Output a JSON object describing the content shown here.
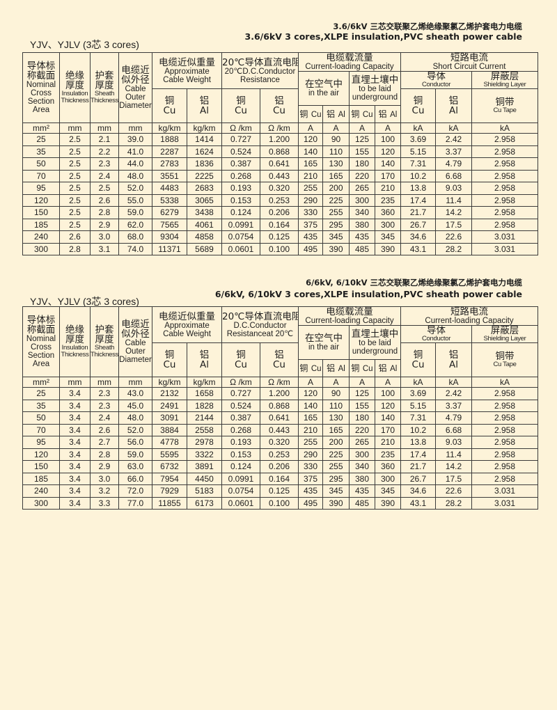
{
  "sections": [
    {
      "title_cn": "3.6/6kV 三芯交联聚乙烯绝缘聚氯乙烯护套电力电缆",
      "title_en": "3.6/6kV 3 cores,XLPE insulation,PVC sheath power cable",
      "label": "YJV、YJLV (3芯  3 cores)",
      "headers": {
        "area": {
          "cn": [
            "导体标",
            "称截面"
          ],
          "en": [
            "Nominal",
            "Cross",
            "Section",
            "Area"
          ]
        },
        "insulation": {
          "cn": [
            "绝缘",
            "厚度"
          ],
          "en": [
            "Insulation",
            "Thickness"
          ]
        },
        "sheath": {
          "cn": [
            "护套",
            "厚度"
          ],
          "en": [
            "Sheath",
            "Thickness"
          ]
        },
        "diameter": {
          "cn": [
            "电缆近",
            "似外径"
          ],
          "en": [
            "Cable",
            "Outer",
            "Diameter"
          ]
        },
        "weight": {
          "cn": "电缆近似重量",
          "en": [
            "Approximate",
            "Cable Weight"
          ]
        },
        "resistance": {
          "cn": "20℃导体直流电阻",
          "en": [
            "20℃D.C.Conductor",
            "Resistance"
          ]
        },
        "weight_cu": [
          "铜",
          "Cu"
        ],
        "weight_al": [
          "铝",
          "Al"
        ],
        "res_cu": [
          "铜",
          "Cu"
        ],
        "res_al": [
          "铝",
          "Cu"
        ],
        "current": {
          "cn": "电缆载流量",
          "en": "Current-loading Capacity"
        },
        "air": {
          "cn": "在空气中",
          "en": [
            "in the air"
          ]
        },
        "ground": {
          "cn": "直埋土壤中",
          "en": [
            "to be laid",
            "underground"
          ]
        },
        "current_cols": [
          [
            "铜",
            "Cu"
          ],
          [
            "铝",
            "Al"
          ],
          [
            "铜",
            "Cu"
          ],
          [
            "铝",
            "Al"
          ]
        ],
        "short": {
          "cn": "短路电流",
          "en": "Short  Circuit Current"
        },
        "conductor": {
          "cn": "导体",
          "en": "Conductor"
        },
        "shielding": {
          "cn": "屏蔽层",
          "en": "Shielding Layer"
        },
        "sc_cu": [
          "铜",
          "Cu"
        ],
        "sc_al": [
          "铝",
          "Al"
        ],
        "tape": [
          "铜带",
          "Cu Tape"
        ]
      },
      "units": [
        "mm²",
        "mm",
        "mm",
        "mm",
        "kg/km",
        "kg/km",
        "Ω /km",
        "Ω /km",
        "A",
        "A",
        "A",
        "A",
        "kA",
        "kA",
        "kA"
      ],
      "rows": [
        [
          "25",
          "2.5",
          "2.1",
          "39.0",
          "1888",
          "1414",
          "0.727",
          "1.200",
          "120",
          "90",
          "125",
          "100",
          "3.69",
          "2.42",
          "2.958"
        ],
        [
          "35",
          "2.5",
          "2.2",
          "41.0",
          "2287",
          "1624",
          "0.524",
          "0.868",
          "140",
          "110",
          "155",
          "120",
          "5.15",
          "3.37",
          "2.958"
        ],
        [
          "50",
          "2.5",
          "2.3",
          "44.0",
          "2783",
          "1836",
          "0.387",
          "0.641",
          "165",
          "130",
          "180",
          "140",
          "7.31",
          "4.79",
          "2.958"
        ],
        [
          "70",
          "2.5",
          "2.4",
          "48.0",
          "3551",
          "2225",
          "0.268",
          "0.443",
          "210",
          "165",
          "220",
          "170",
          "10.2",
          "6.68",
          "2.958"
        ],
        [
          "95",
          "2.5",
          "2.5",
          "52.0",
          "4483",
          "2683",
          "0.193",
          "0.320",
          "255",
          "200",
          "265",
          "210",
          "13.8",
          "9.03",
          "2.958"
        ],
        [
          "120",
          "2.5",
          "2.6",
          "55.0",
          "5338",
          "3065",
          "0.153",
          "0.253",
          "290",
          "225",
          "300",
          "235",
          "17.4",
          "11.4",
          "2.958"
        ],
        [
          "150",
          "2.5",
          "2.8",
          "59.0",
          "6279",
          "3438",
          "0.124",
          "0.206",
          "330",
          "255",
          "340",
          "360",
          "21.7",
          "14.2",
          "2.958"
        ],
        [
          "185",
          "2.5",
          "2.9",
          "62.0",
          "7565",
          "4061",
          "0.0991",
          "0.164",
          "375",
          "295",
          "380",
          "300",
          "26.7",
          "17.5",
          "2.958"
        ],
        [
          "240",
          "2.6",
          "3.0",
          "68.0",
          "9304",
          "4858",
          "0.0754",
          "0.125",
          "435",
          "345",
          "435",
          "345",
          "34.6",
          "22.6",
          "3.031"
        ],
        [
          "300",
          "2.8",
          "3.1",
          "74.0",
          "11371",
          "5689",
          "0.0601",
          "0.100",
          "495",
          "390",
          "485",
          "390",
          "43.1",
          "28.2",
          "3.031"
        ]
      ]
    },
    {
      "title_cn": "6/6kV, 6/10kV 三芯交联聚乙烯绝缘聚氯乙烯护套电力电缆",
      "title_en": "6/6kV, 6/10kV 3 cores,XLPE insulation,PVC sheath power cable",
      "label": "YJV、YJLV (3芯  3 cores)",
      "headers": {
        "area": {
          "cn": [
            "导体标",
            "称截面"
          ],
          "en": [
            "Nominal",
            "Cross",
            "Section",
            "Area"
          ]
        },
        "insulation": {
          "cn": [
            "绝缘",
            "厚度"
          ],
          "en": [
            "Insulation",
            "Thickness"
          ]
        },
        "sheath": {
          "cn": [
            "护套",
            "厚度"
          ],
          "en": [
            "Sheath",
            "Thickness"
          ]
        },
        "diameter": {
          "cn": [
            "电缆近",
            "似外径"
          ],
          "en": [
            "Cable",
            "Outer",
            "Diameter"
          ]
        },
        "weight": {
          "cn": "电缆近似重量",
          "en": [
            "Approximate",
            "Cable Weight"
          ]
        },
        "resistance": {
          "cn": "20℃导体直流电阻",
          "en": [
            "D.C.Conductor",
            "Resistanceat 20℃"
          ]
        },
        "weight_cu": [
          "铜",
          "Cu"
        ],
        "weight_al": [
          "铝",
          "Al"
        ],
        "res_cu": [
          "铜",
          "Cu"
        ],
        "res_al": [
          "铝",
          "Cu"
        ],
        "current": {
          "cn": "电缆载流量",
          "en": "Current-loading Capacity"
        },
        "air": {
          "cn": "在空气中",
          "en": [
            "in the air"
          ]
        },
        "ground": {
          "cn": "直埋土壤中",
          "en": [
            "to be laid",
            "underground"
          ]
        },
        "current_cols": [
          [
            "铜",
            "Cu"
          ],
          [
            "铝",
            "Al"
          ],
          [
            "铜",
            "Cu"
          ],
          [
            "铝",
            "Al"
          ]
        ],
        "short": {
          "cn": "短路电流",
          "en": "Current-loading Capacity"
        },
        "conductor": {
          "cn": "导体",
          "en": "Conductor"
        },
        "shielding": {
          "cn": "屏蔽层",
          "en": "Shielding Layer"
        },
        "sc_cu": [
          "铜",
          "Cu"
        ],
        "sc_al": [
          "铝",
          "Al"
        ],
        "tape": [
          "铜带",
          "Cu Tape"
        ]
      },
      "units": [
        "mm²",
        "mm",
        "mm",
        "mm",
        "kg/km",
        "kg/km",
        "Ω /km",
        "Ω /km",
        "A",
        "A",
        "A",
        "A",
        "kA",
        "kA",
        "kA"
      ],
      "rows": [
        [
          "25",
          "3.4",
          "2.3",
          "43.0",
          "2132",
          "1658",
          "0.727",
          "1.200",
          "120",
          "90",
          "125",
          "100",
          "3.69",
          "2.42",
          "2.958"
        ],
        [
          "35",
          "3.4",
          "2.3",
          "45.0",
          "2491",
          "1828",
          "0.524",
          "0.868",
          "140",
          "110",
          "155",
          "120",
          "5.15",
          "3.37",
          "2.958"
        ],
        [
          "50",
          "3.4",
          "2.4",
          "48.0",
          "3091",
          "2144",
          "0.387",
          "0.641",
          "165",
          "130",
          "180",
          "140",
          "7.31",
          "4.79",
          "2.958"
        ],
        [
          "70",
          "3.4",
          "2.6",
          "52.0",
          "3884",
          "2558",
          "0.268",
          "0.443",
          "210",
          "165",
          "220",
          "170",
          "10.2",
          "6.68",
          "2.958"
        ],
        [
          "95",
          "3.4",
          "2.7",
          "56.0",
          "4778",
          "2978",
          "0.193",
          "0.320",
          "255",
          "200",
          "265",
          "210",
          "13.8",
          "9.03",
          "2.958"
        ],
        [
          "120",
          "3.4",
          "2.8",
          "59.0",
          "5595",
          "3322",
          "0.153",
          "0.253",
          "290",
          "225",
          "300",
          "235",
          "17.4",
          "11.4",
          "2.958"
        ],
        [
          "150",
          "3.4",
          "2.9",
          "63.0",
          "6732",
          "3891",
          "0.124",
          "0.206",
          "330",
          "255",
          "340",
          "360",
          "21.7",
          "14.2",
          "2.958"
        ],
        [
          "185",
          "3.4",
          "3.0",
          "66.0",
          "7954",
          "4450",
          "0.0991",
          "0.164",
          "375",
          "295",
          "380",
          "300",
          "26.7",
          "17.5",
          "2.958"
        ],
        [
          "240",
          "3.4",
          "3.2",
          "72.0",
          "7929",
          "5183",
          "0.0754",
          "0.125",
          "435",
          "345",
          "435",
          "345",
          "34.6",
          "22.6",
          "3.031"
        ],
        [
          "300",
          "3.4",
          "3.3",
          "77.0",
          "11855",
          "6173",
          "0.0601",
          "0.100",
          "495",
          "390",
          "485",
          "390",
          "43.1",
          "28.2",
          "3.031"
        ]
      ]
    }
  ]
}
